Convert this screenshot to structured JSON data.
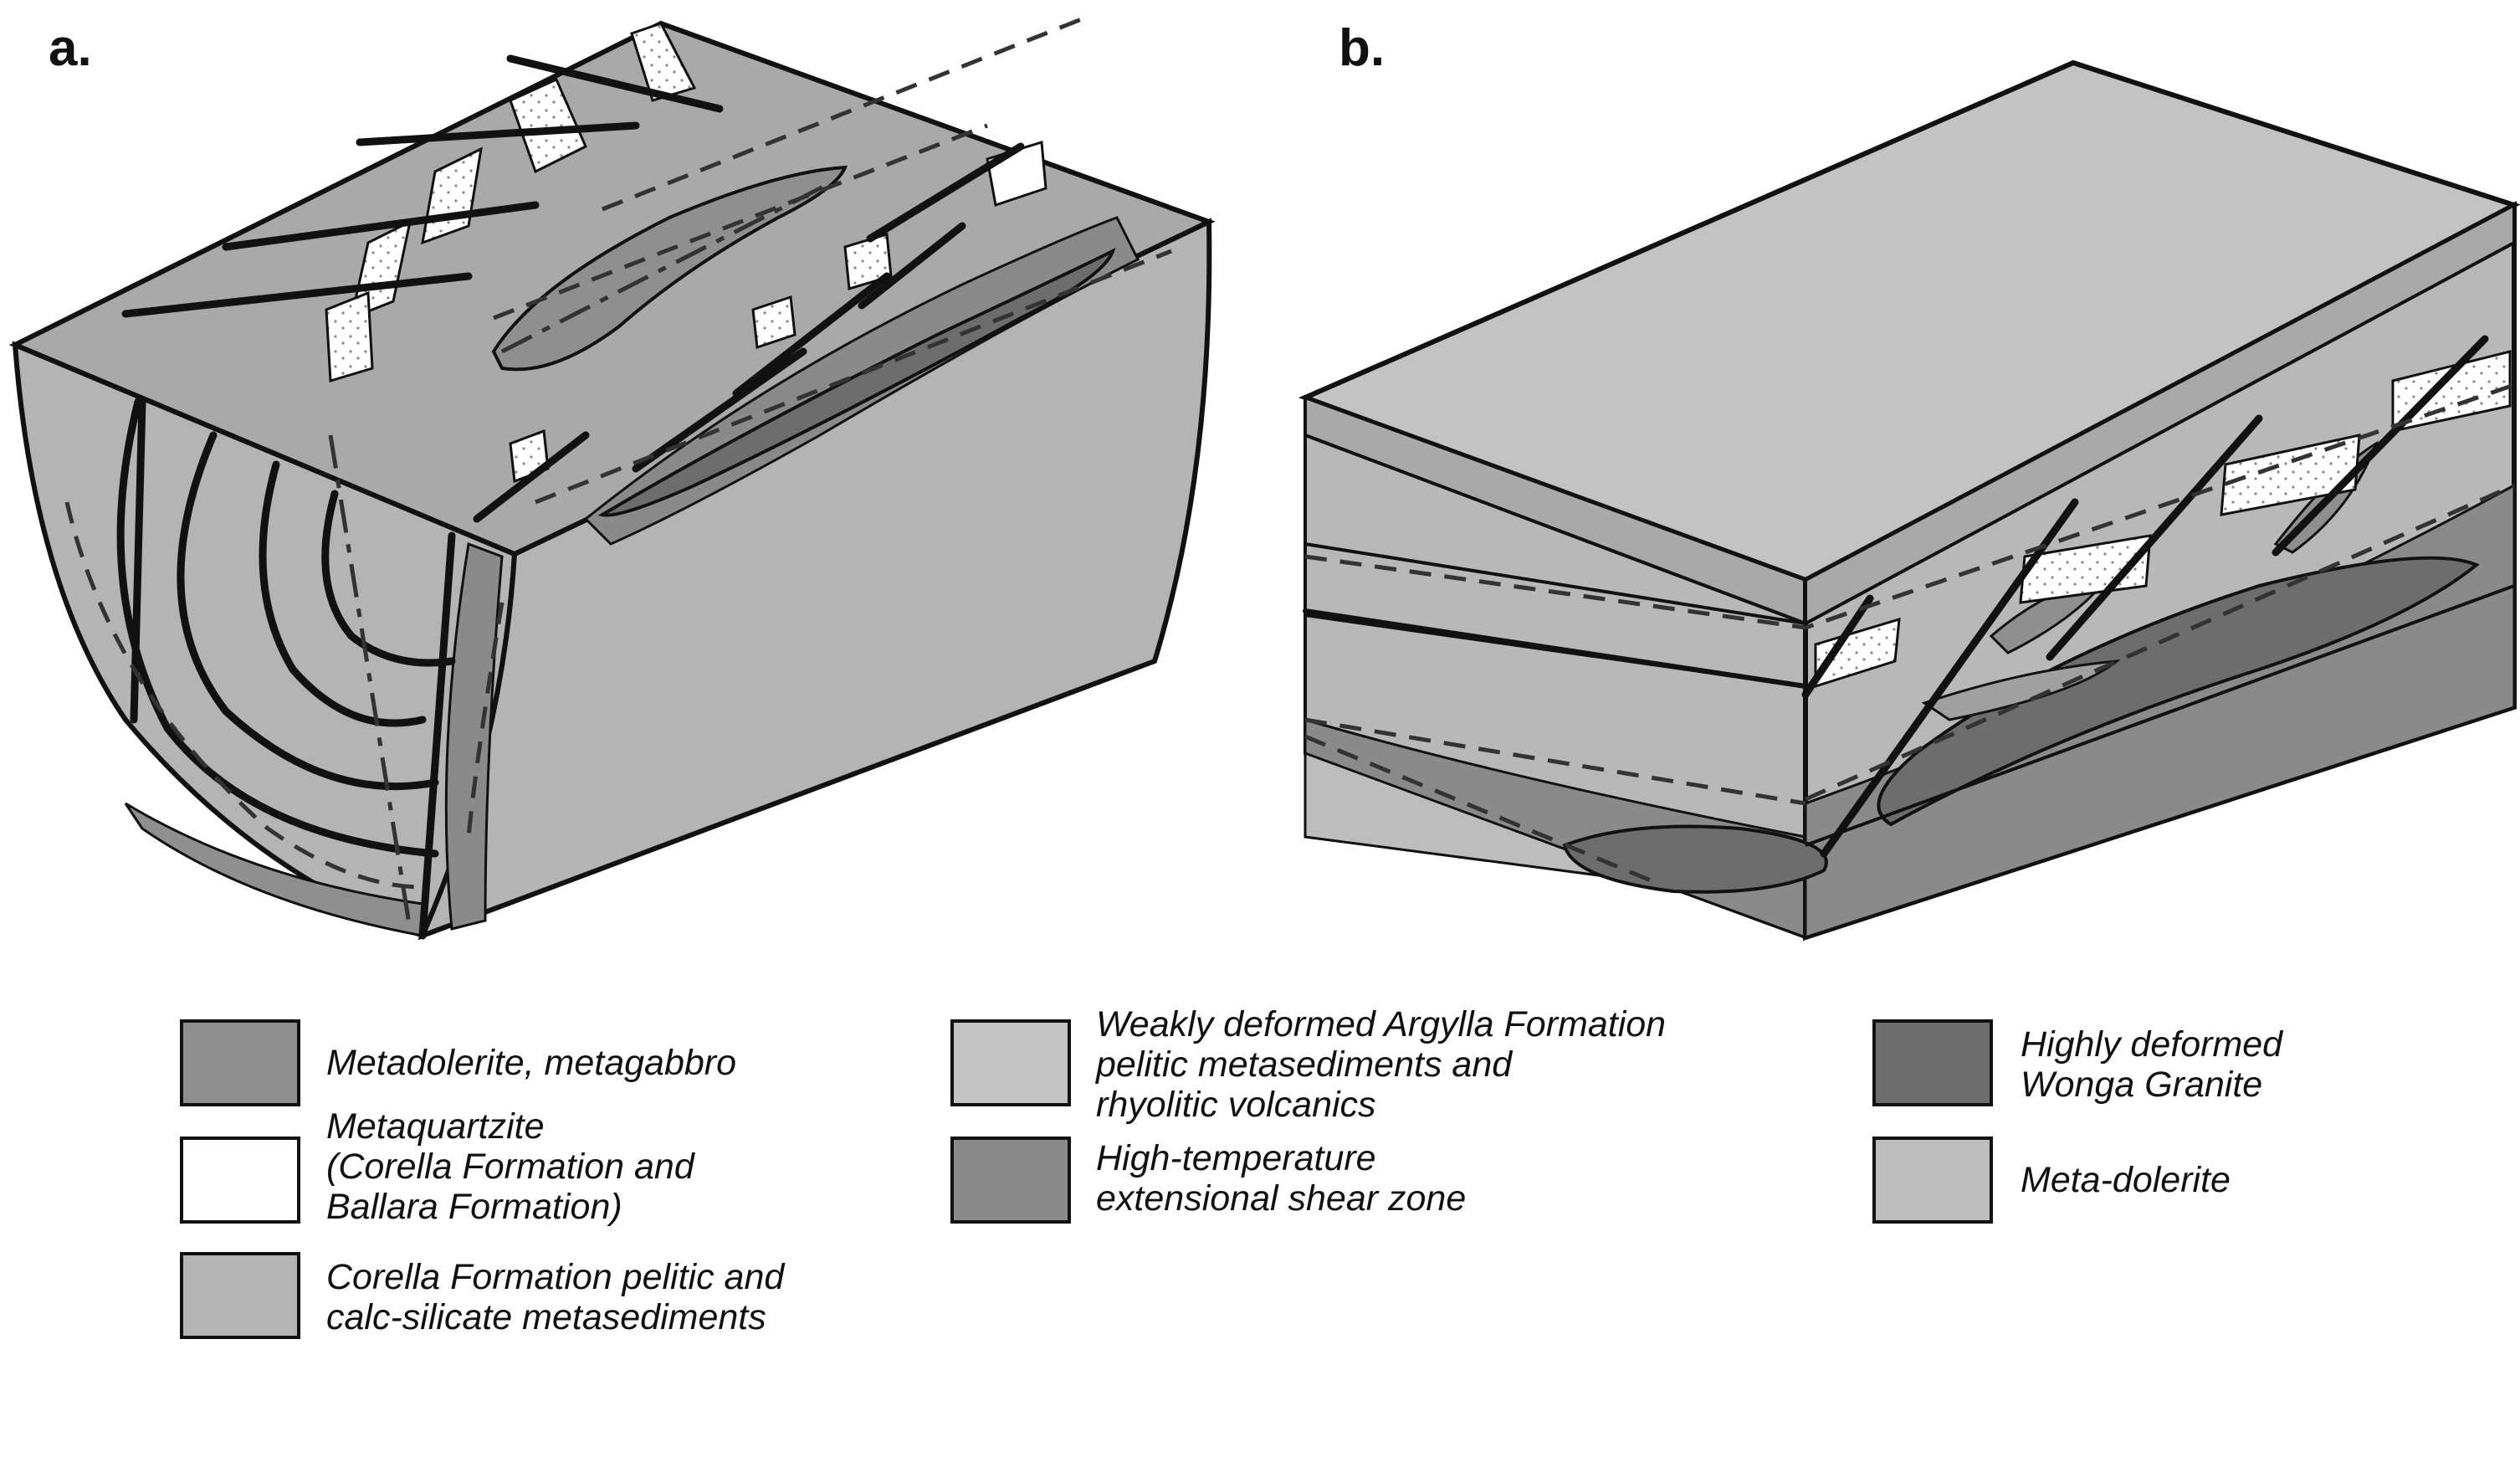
{
  "panels": {
    "a": "a.",
    "b": "b."
  },
  "colors": {
    "metadolerite": "#8f8f8f",
    "metaquartzite": "#ffffff",
    "corella": "#b4b4b4",
    "argylla": "#c3c3c3",
    "shear_zone": "#8a8a8a",
    "wonga": "#6d6d6d",
    "meta_dolerite": "#bdbdbd",
    "outline": "#111111"
  },
  "legend": {
    "metadolerite": {
      "line1": "Metadolerite, metagabbro"
    },
    "metaquartzite": {
      "line1": "Metaquartzite",
      "line2": "(Corella Formation and",
      "line3": "Ballara Formation)"
    },
    "corella": {
      "line1": "Corella Formation pelitic and",
      "line2": "calc-silicate metasediments"
    },
    "argylla": {
      "line1": "Weakly deformed Argylla Formation",
      "line2": "pelitic metasediments and",
      "line3": "rhyolitic volcanics"
    },
    "shear_zone": {
      "line1": "High-temperature",
      "line2": "extensional shear zone"
    },
    "wonga": {
      "line1": "Highly deformed",
      "line2": "Wonga Granite"
    },
    "meta_dolerite": {
      "line1": "Meta-dolerite"
    }
  }
}
